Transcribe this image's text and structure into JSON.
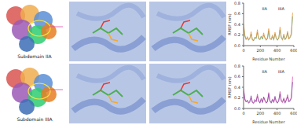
{
  "labels": [
    "Subdomain IIA",
    "Subdomain IIIA"
  ],
  "chart_data": [
    {
      "type": "line",
      "xlabel": "Residue Number",
      "ylabel": "RMSF (nm)",
      "x": [
        1,
        15,
        30,
        45,
        60,
        75,
        90,
        105,
        120,
        135,
        150,
        165,
        180,
        195,
        210,
        225,
        240,
        255,
        270,
        285,
        300,
        315,
        330,
        345,
        360,
        375,
        390,
        405,
        420,
        435,
        450,
        465,
        480,
        495,
        510,
        525,
        540,
        555,
        570,
        585
      ],
      "xlim": [
        0,
        600
      ],
      "xticks": [
        0,
        200,
        400,
        600
      ],
      "ylim": [
        0,
        0.8
      ],
      "yticks": [
        {
          "value": 0,
          "label": "0.0"
        },
        0.2,
        0.4,
        0.6,
        0.8
      ],
      "series": [
        {
          "color": "#2ca58d",
          "values": [
            0.35,
            0.18,
            0.12,
            0.15,
            0.1,
            0.14,
            0.22,
            0.12,
            0.09,
            0.16,
            0.13,
            0.25,
            0.14,
            0.11,
            0.18,
            0.12,
            0.2,
            0.15,
            0.1,
            0.13,
            0.28,
            0.14,
            0.11,
            0.17,
            0.12,
            0.22,
            0.13,
            0.1,
            0.15,
            0.3,
            0.14,
            0.12,
            0.19,
            0.11,
            0.16,
            0.24,
            0.13,
            0.15,
            0.2,
            0.55
          ]
        },
        {
          "color": "#f08a24",
          "values": [
            0.4,
            0.2,
            0.11,
            0.17,
            0.12,
            0.13,
            0.26,
            0.1,
            0.11,
            0.14,
            0.15,
            0.3,
            0.12,
            0.13,
            0.16,
            0.14,
            0.24,
            0.13,
            0.12,
            0.15,
            0.32,
            0.12,
            0.13,
            0.2,
            0.1,
            0.25,
            0.15,
            0.12,
            0.13,
            0.35,
            0.16,
            0.1,
            0.22,
            0.13,
            0.14,
            0.27,
            0.12,
            0.17,
            0.23,
            0.62
          ]
        }
      ],
      "annotations": [
        {
          "text": "IIA",
          "x": 250,
          "y": 0.7
        },
        {
          "text": "IIIA",
          "x": 450,
          "y": 0.7
        }
      ]
    },
    {
      "type": "line",
      "xlabel": "Residue Number",
      "ylabel": "RMSF (nm)",
      "x": [
        1,
        15,
        30,
        45,
        60,
        75,
        90,
        105,
        120,
        135,
        150,
        165,
        180,
        195,
        210,
        225,
        240,
        255,
        270,
        285,
        300,
        315,
        330,
        345,
        360,
        375,
        390,
        405,
        420,
        435,
        450,
        465,
        480,
        495,
        510,
        525,
        540,
        555,
        570,
        585
      ],
      "xlim": [
        0,
        600
      ],
      "xticks": [
        0,
        200,
        400,
        600
      ],
      "ylim": [
        0,
        0.8
      ],
      "yticks": [
        {
          "value": 0,
          "label": "0.0"
        },
        0.2,
        0.4,
        0.6,
        0.8
      ],
      "series": [
        {
          "color": "#e040a0",
          "values": [
            0.38,
            0.16,
            0.13,
            0.14,
            0.11,
            0.15,
            0.2,
            0.11,
            0.1,
            0.15,
            0.12,
            0.27,
            0.13,
            0.12,
            0.17,
            0.13,
            0.22,
            0.14,
            0.11,
            0.12,
            0.3,
            0.13,
            0.12,
            0.18,
            0.11,
            0.2,
            0.14,
            0.11,
            0.14,
            0.32,
            0.13,
            0.11,
            0.2,
            0.12,
            0.15,
            0.26,
            0.12,
            0.16,
            0.21,
            0.6
          ]
        },
        {
          "color": "#7b3fa0",
          "values": [
            0.33,
            0.19,
            0.12,
            0.16,
            0.1,
            0.12,
            0.24,
            0.12,
            0.1,
            0.17,
            0.14,
            0.23,
            0.15,
            0.1,
            0.19,
            0.11,
            0.21,
            0.16,
            0.1,
            0.14,
            0.27,
            0.15,
            0.1,
            0.16,
            0.13,
            0.23,
            0.12,
            0.1,
            0.16,
            0.28,
            0.15,
            0.13,
            0.18,
            0.1,
            0.17,
            0.22,
            0.14,
            0.14,
            0.19,
            0.5
          ]
        }
      ],
      "annotations": [
        {
          "text": "IIA",
          "x": 250,
          "y": 0.7
        },
        {
          "text": "IIIA",
          "x": 450,
          "y": 0.7
        }
      ]
    }
  ]
}
